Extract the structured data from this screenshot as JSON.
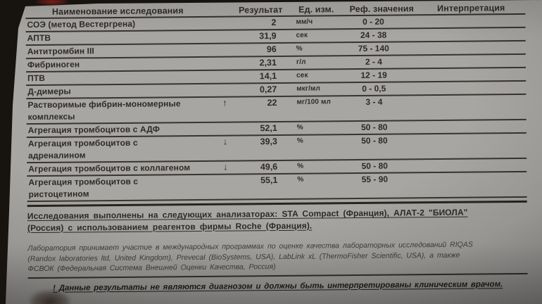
{
  "colors": {
    "paper": "#aeaca9",
    "ink": "#2e2b27",
    "background": "#17130f",
    "smudge_red": "#8c231e"
  },
  "table": {
    "headers": [
      "Наименование исследования",
      "Результат",
      "Ед. изм.",
      "Реф. значения",
      "Интерпретация"
    ],
    "rows": [
      {
        "name": [
          "СОЭ (метод Вестергрена)"
        ],
        "arrow": "",
        "result": "2",
        "unit": "мм/ч",
        "ref": "0 - 20",
        "interp": ""
      },
      {
        "name": [
          "АПТВ"
        ],
        "arrow": "",
        "result": "31,9",
        "unit": "сек",
        "ref": "24 - 38",
        "interp": ""
      },
      {
        "name": [
          "Антитромбин III"
        ],
        "arrow": "",
        "result": "96",
        "unit": "%",
        "ref": "75 - 140",
        "interp": ""
      },
      {
        "name": [
          "Фибриноген"
        ],
        "arrow": "",
        "result": "2,31",
        "unit": "г/л",
        "ref": "2 - 4",
        "interp": ""
      },
      {
        "name": [
          "ПТВ"
        ],
        "arrow": "",
        "result": "14,1",
        "unit": "сек",
        "ref": "12 - 19",
        "interp": ""
      },
      {
        "name": [
          "Д-димеры"
        ],
        "arrow": "",
        "result": "0,27",
        "unit": "мкг/мл",
        "ref": "0 - 0,5",
        "interp": ""
      },
      {
        "name": [
          "Растворимые фибрин-мономерные",
          "комплексы"
        ],
        "arrow": "↑",
        "result": "22",
        "unit": "мг/100 мл",
        "ref": "3 - 4",
        "interp": ""
      },
      {
        "name": [
          "Агрегация тромбоцитов с АДФ"
        ],
        "arrow": "",
        "result": "52,1",
        "unit": "%",
        "ref": "50 - 80",
        "interp": ""
      },
      {
        "name": [
          "Агрегация тромбоцитов с",
          "адреналином"
        ],
        "arrow": "↓",
        "result": "39,3",
        "unit": "%",
        "ref": "50 - 80",
        "interp": ""
      },
      {
        "name": [
          "Агрегация тромбоцитов с коллагеном"
        ],
        "arrow": "↓",
        "result": "49,6",
        "unit": "%",
        "ref": "50 - 80",
        "interp": ""
      },
      {
        "name": [
          "Агрегация тромбоцитов с",
          "ристоцетином"
        ],
        "arrow": "",
        "result": "55,1",
        "unit": "%",
        "ref": "55 - 90",
        "interp": ""
      }
    ]
  },
  "notes": {
    "analyzers": [
      "Исследования выполнены на следующих анализаторах: STA Compact (Франция), АЛАТ-2 \"БИОЛА\"",
      "(Россия) с использованием реагентов фирмы Roche (Франция)."
    ],
    "quality": [
      "Лаборатория принимает участие в международных программах по оценке качества лабораторных исследований RIQAS",
      "(Randox laboratories ltd, United Kingdom), Prevecal (BioSystems, USA), LabLink xL (ThermoFisher Scientific, USA), а также",
      "ФСВОК (Федеральная Система Внешней Оценки Качества, Россия)"
    ],
    "disclaimer": "! Данные результаты не являются диагнозом и должны быть интерпретированы клиническим врачом."
  }
}
